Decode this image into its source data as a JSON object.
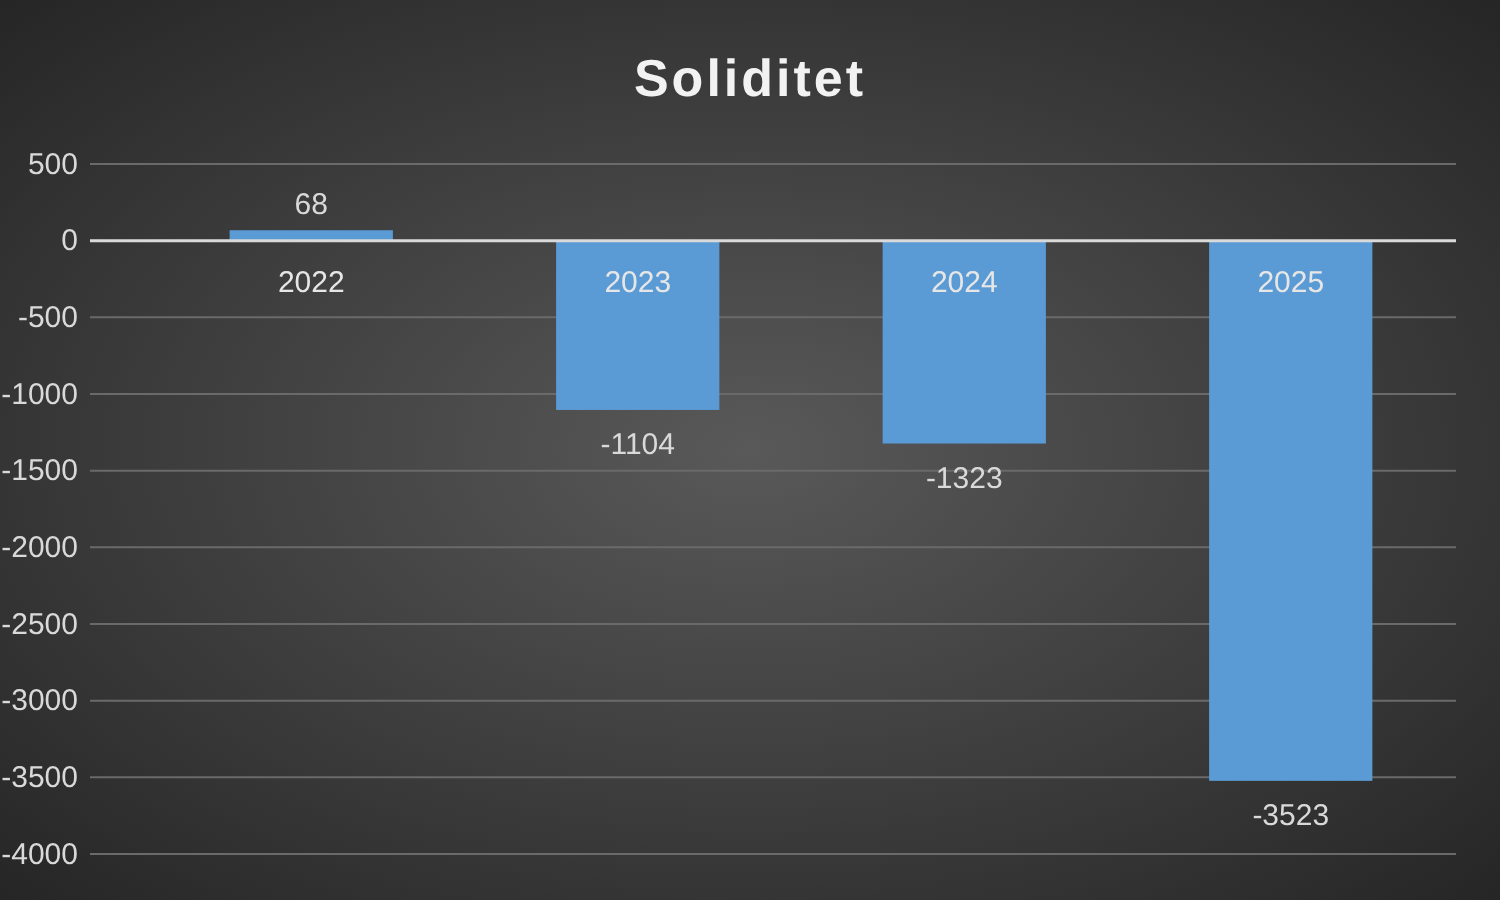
{
  "chart_data": {
    "type": "bar",
    "title": "Soliditet",
    "categories": [
      "2022",
      "2023",
      "2024",
      "2025"
    ],
    "values": [
      68,
      -1104,
      -1323,
      -3523
    ],
    "color": "#5b9bd5",
    "ylim": [
      -4000,
      500
    ],
    "yticks": [
      -4000,
      -3500,
      -3000,
      -2500,
      -2000,
      -1500,
      -1000,
      -500,
      0,
      500
    ],
    "grid": "y",
    "data_labels": true
  }
}
